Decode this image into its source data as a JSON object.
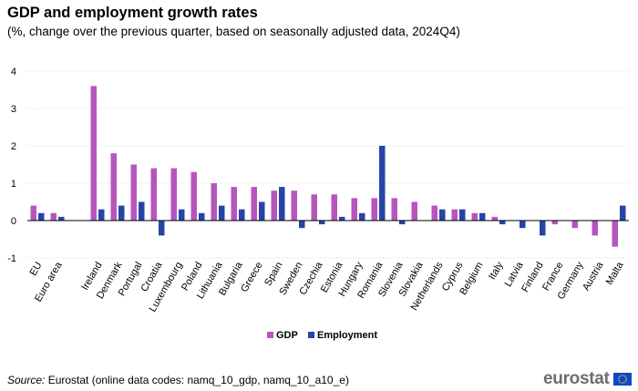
{
  "title": "GDP and employment growth rates",
  "subtitle": "(%, change over the previous quarter, based on seasonally adjusted data, 2024Q4)",
  "source": {
    "label": "Source:",
    "text": " Eurostat (online data codes: namq_10_gdp, namq_10_a10_e)"
  },
  "logo": {
    "text": "eurostat"
  },
  "colors": {
    "gdp": "#b656bd",
    "employment": "#2644a7",
    "grid": "#d9d9d9",
    "axis": "#000000"
  },
  "chart_data": {
    "type": "bar",
    "title": "GDP and employment growth rates",
    "subtitle": "(%, change over the previous quarter, based on seasonally adjusted data, 2024Q4)",
    "xlabel": "",
    "ylabel": "",
    "ylim": [
      -1,
      4
    ],
    "yticks": [
      -1,
      0,
      1,
      2,
      3,
      4
    ],
    "grid": true,
    "legend_position": "bottom-center",
    "categories": [
      "EU",
      "Euro area",
      "",
      "Ireland",
      "Denmark",
      "Portugal",
      "Croatia",
      "Luxembourg",
      "Poland",
      "Lithuania",
      "Bulgaria",
      "Greece",
      "Spain",
      "Sweden",
      "Czechia",
      "Estonia",
      "Hungary",
      "Romania",
      "Slovenia",
      "Slovakia",
      "Netherlands",
      "Cyprus",
      "Belgium",
      "Italy",
      "Latvia",
      "Finland",
      "France",
      "Germany",
      "Austria",
      "Malta"
    ],
    "series": [
      {
        "name": "GDP",
        "values": [
          0.4,
          0.2,
          null,
          3.6,
          1.8,
          1.5,
          1.4,
          1.4,
          1.3,
          1.0,
          0.9,
          0.9,
          0.8,
          0.8,
          0.7,
          0.7,
          0.6,
          0.6,
          0.6,
          0.5,
          0.4,
          0.3,
          0.2,
          0.1,
          0.0,
          0.0,
          -0.1,
          -0.2,
          -0.4,
          -0.7
        ]
      },
      {
        "name": "Employment",
        "values": [
          0.2,
          0.1,
          null,
          0.3,
          0.4,
          0.5,
          -0.4,
          0.3,
          0.2,
          0.4,
          0.3,
          0.5,
          0.9,
          -0.2,
          -0.1,
          0.1,
          0.2,
          2.0,
          -0.1,
          0.0,
          0.3,
          0.3,
          0.2,
          -0.1,
          -0.2,
          -0.4,
          0.0,
          0.0,
          0.0,
          0.4
        ]
      }
    ]
  }
}
